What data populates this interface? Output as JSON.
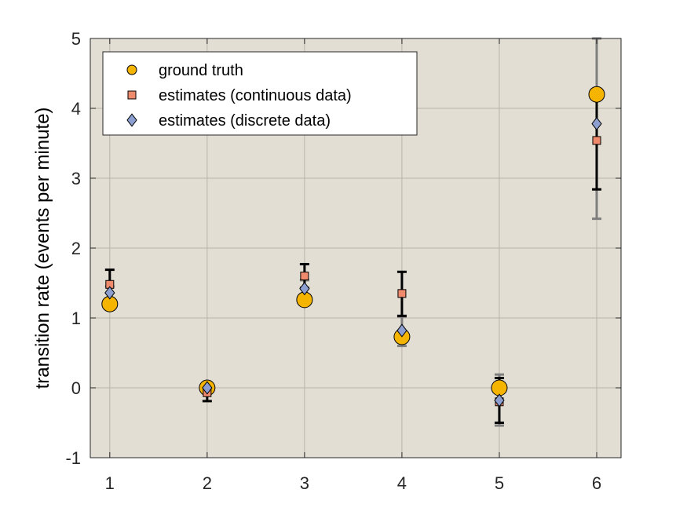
{
  "chart_data": {
    "type": "scatter",
    "title": "",
    "xlabel": "",
    "ylabel": "transition rate (events per minute)",
    "xlim": [
      0.8,
      6.25
    ],
    "ylim": [
      -1,
      5
    ],
    "xticks": [
      "1",
      "2",
      "3",
      "4",
      "5",
      "6"
    ],
    "yticks": [
      "-1",
      "0",
      "1",
      "2",
      "3",
      "4",
      "5"
    ],
    "grid": true,
    "legend_position": "top-left",
    "x": [
      1,
      2,
      3,
      4,
      5,
      6
    ],
    "series": [
      {
        "name": "ground truth",
        "marker": "circle",
        "color": "#F5B400",
        "values": [
          1.2,
          0.0,
          1.26,
          0.73,
          0.0,
          4.2
        ]
      },
      {
        "name": "estimates (continuous data)",
        "marker": "square",
        "color": "#F08A6C",
        "values": [
          1.48,
          -0.07,
          1.6,
          1.35,
          -0.2,
          3.54
        ],
        "error_low": [
          1.28,
          -0.19,
          1.43,
          1.03,
          -0.5,
          2.84
        ],
        "error_high": [
          1.69,
          0.05,
          1.77,
          1.66,
          0.14,
          4.22
        ],
        "error_color": "#000000"
      },
      {
        "name": "estimates (discrete data)",
        "marker": "diamond",
        "color": "#8C9FD0",
        "values": [
          1.36,
          0.0,
          1.42,
          0.82,
          -0.18,
          3.78
        ],
        "error_low": [
          1.27,
          -0.03,
          1.3,
          0.6,
          -0.54,
          2.42
        ],
        "error_high": [
          1.45,
          0.03,
          1.54,
          1.02,
          0.19,
          5.0
        ],
        "error_color": "#7F7F7F"
      }
    ],
    "colors": {
      "plot_background": "#E3DED3",
      "grid": "#B8B3A8",
      "axis": "#262626"
    }
  }
}
